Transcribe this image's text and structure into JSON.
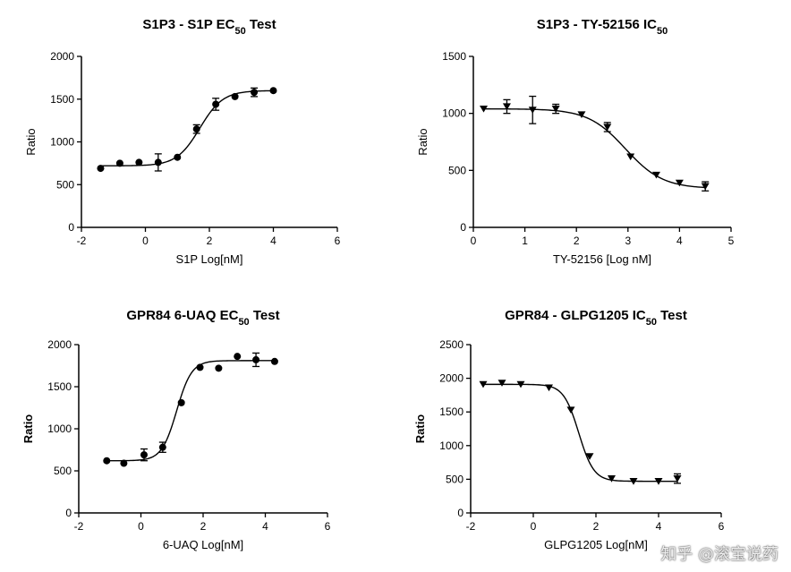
{
  "watermark": "知乎 @滚宝说药",
  "chart_data": [
    {
      "type": "scatter",
      "title_main": "S1P3 - S1P EC",
      "title_sub": "50",
      "title_tail": " Test",
      "xlabel": "S1P Log[nM]",
      "ylabel": "Ratio",
      "ylabel_bold": false,
      "xlim": [
        -2,
        6
      ],
      "ylim": [
        0,
        2000
      ],
      "xticks": [
        -2,
        0,
        2,
        4,
        6
      ],
      "yticks": [
        0,
        500,
        1000,
        1500,
        2000
      ],
      "marker": "circle",
      "x": [
        -1.4,
        -0.8,
        -0.2,
        0.4,
        1.0,
        1.6,
        2.2,
        2.8,
        3.4,
        4.0
      ],
      "y": [
        690,
        750,
        760,
        760,
        820,
        1150,
        1440,
        1530,
        1580,
        1600
      ],
      "err": [
        0,
        0,
        0,
        100,
        0,
        50,
        70,
        0,
        50,
        0
      ],
      "fit": {
        "bottom": 720,
        "top": 1600,
        "ec50": 1.7,
        "hill": 1.2
      }
    },
    {
      "type": "scatter",
      "title_main": "S1P3 - TY-52156 IC",
      "title_sub": "50",
      "title_tail": "",
      "xlabel": "TY-52156  [Log nM]",
      "ylabel": "Ratio",
      "ylabel_bold": false,
      "xlim": [
        0,
        5
      ],
      "ylim": [
        0,
        1500
      ],
      "xticks": [
        0,
        1,
        2,
        3,
        4,
        5
      ],
      "yticks": [
        0,
        500,
        1000,
        1500
      ],
      "marker": "triangle-down",
      "x": [
        0.2,
        0.65,
        1.15,
        1.6,
        2.1,
        2.6,
        3.05,
        3.55,
        4.0,
        4.5
      ],
      "y": [
        1040,
        1060,
        1030,
        1040,
        990,
        880,
        620,
        460,
        390,
        360
      ],
      "err": [
        0,
        60,
        120,
        40,
        0,
        40,
        0,
        0,
        0,
        40
      ],
      "fit": {
        "bottom": 340,
        "top": 1040,
        "ec50": 2.95,
        "hill": -1.2
      }
    },
    {
      "type": "scatter",
      "title_main": "GPR84 6-UAQ EC",
      "title_sub": "50",
      "title_tail": " Test",
      "xlabel": "6-UAQ Log[nM]",
      "ylabel": "Ratio",
      "ylabel_bold": true,
      "xlim": [
        -2,
        6
      ],
      "ylim": [
        0,
        2000
      ],
      "xticks": [
        -2,
        0,
        2,
        4,
        6
      ],
      "yticks": [
        0,
        500,
        1000,
        1500,
        2000
      ],
      "marker": "circle",
      "x": [
        -1.1,
        -0.55,
        0.1,
        0.7,
        1.3,
        1.9,
        2.5,
        3.1,
        3.7,
        4.3
      ],
      "y": [
        620,
        590,
        690,
        780,
        1310,
        1730,
        1720,
        1860,
        1820,
        1800
      ],
      "err": [
        0,
        0,
        70,
        60,
        0,
        0,
        0,
        0,
        80,
        0
      ],
      "fit": {
        "bottom": 620,
        "top": 1810,
        "ec50": 1.15,
        "hill": 1.8
      }
    },
    {
      "type": "scatter",
      "title_main": "GPR84 - GLPG1205 IC",
      "title_sub": "50",
      "title_tail": " Test",
      "xlabel": "GLPG1205 Log[nM]",
      "ylabel": "Ratio",
      "ylabel_bold": true,
      "xlim": [
        -2,
        6
      ],
      "ylim": [
        0,
        2500
      ],
      "xticks": [
        -2,
        0,
        2,
        4,
        6
      ],
      "yticks": [
        0,
        500,
        1000,
        1500,
        2000,
        2500
      ],
      "marker": "triangle-down",
      "x": [
        -1.6,
        -1.0,
        -0.4,
        0.5,
        1.2,
        1.8,
        2.5,
        3.2,
        4.0,
        4.6
      ],
      "y": [
        1910,
        1930,
        1910,
        1860,
        1530,
        840,
        510,
        470,
        470,
        510
      ],
      "err": [
        0,
        0,
        0,
        0,
        0,
        0,
        0,
        0,
        0,
        70
      ],
      "fit": {
        "bottom": 470,
        "top": 1910,
        "ec50": 1.45,
        "hill": -1.8
      }
    }
  ]
}
